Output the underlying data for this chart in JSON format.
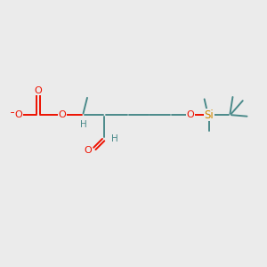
{
  "bg_color": "#ebebeb",
  "bond_color": "#4a8a8a",
  "bond_lw": 1.4,
  "o_color": "#ee1100",
  "si_color": "#cc8800",
  "figsize": [
    3.0,
    3.0
  ],
  "dpi": 100,
  "xlim": [
    0,
    10
  ],
  "ylim": [
    0,
    10
  ]
}
